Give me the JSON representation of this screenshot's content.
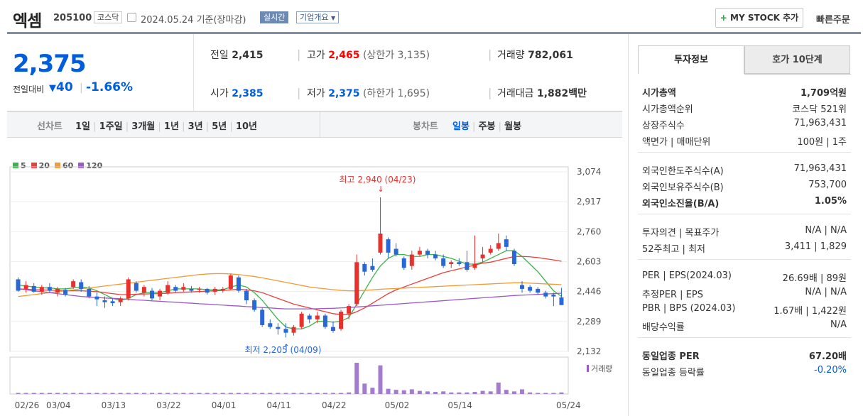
{
  "header": {
    "name": "엑셈",
    "code": "205100",
    "market_tag": "코스닥",
    "date_text": "2024.05.24 기준(장마감)",
    "realtime_btn": "실시간",
    "company_btn": "기업개요",
    "mystock_btn": "MY STOCK 추가",
    "quick_order": "빠른주문"
  },
  "price": {
    "current": "2,375",
    "change_label": "전일대비",
    "change": "40",
    "change_pct": "-1.66%"
  },
  "quote": {
    "prev_label": "전일",
    "prev": "2,415",
    "high_label": "고가",
    "high": "2,465",
    "upper_limit": "(상한가 3,135)",
    "volume_label": "거래량",
    "volume": "782,061",
    "open_label": "시가",
    "open": "2,385",
    "low_label": "저가",
    "low": "2,375",
    "lower_limit": "(하한가 1,695)",
    "amount_label": "거래대금",
    "amount": "1,882",
    "amount_unit": "백만"
  },
  "periods": {
    "line_label": "선차트",
    "items": [
      "1일",
      "1주일",
      "3개월",
      "1년",
      "3년",
      "5년",
      "10년"
    ],
    "candle_label": "봉차트",
    "candles": [
      "일봉",
      "주봉",
      "월봉"
    ],
    "selected_candle": "일봉"
  },
  "legend": [
    {
      "name": "5",
      "color": "#3cb34a"
    },
    {
      "name": "20",
      "color": "#e8403c"
    },
    {
      "name": "60",
      "color": "#f39a34"
    },
    {
      "name": "120",
      "color": "#9b59c8"
    }
  ],
  "chart_data": {
    "type": "candlestick",
    "y_ticks": [
      "3,074",
      "2,917",
      "2,760",
      "2,603",
      "2,446",
      "2,289",
      "2,132"
    ],
    "ylim": [
      2132,
      3074
    ],
    "x_ticks": [
      "02/26",
      "03/04",
      "03/13",
      "03/22",
      "04/01",
      "04/11",
      "04/22",
      "05/02",
      "05/14",
      "05/24"
    ],
    "max_annotation": "최고 2,940 (04/23)",
    "min_annotation": "최저 2,205 (04/09)",
    "volume_label": "거래량",
    "candles": [
      [
        2510,
        2450,
        2520,
        2445
      ],
      [
        2460,
        2480,
        2500,
        2440
      ],
      [
        2475,
        2445,
        2490,
        2440
      ],
      [
        2445,
        2470,
        2480,
        2430
      ],
      [
        2470,
        2450,
        2490,
        2440
      ],
      [
        2440,
        2460,
        2470,
        2420
      ],
      [
        2455,
        2430,
        2465,
        2420
      ],
      [
        2470,
        2500,
        2510,
        2460
      ],
      [
        2495,
        2460,
        2510,
        2445
      ],
      [
        2460,
        2420,
        2475,
        2410
      ],
      [
        2420,
        2405,
        2440,
        2370
      ],
      [
        2400,
        2390,
        2420,
        2360
      ],
      [
        2395,
        2385,
        2410,
        2370
      ],
      [
        2390,
        2410,
        2420,
        2370
      ],
      [
        2410,
        2510,
        2520,
        2400
      ],
      [
        2490,
        2450,
        2500,
        2440
      ],
      [
        2440,
        2470,
        2480,
        2420
      ],
      [
        2450,
        2410,
        2465,
        2400
      ],
      [
        2420,
        2450,
        2460,
        2400
      ],
      [
        2440,
        2480,
        2500,
        2430
      ],
      [
        2470,
        2450,
        2480,
        2440
      ],
      [
        2455,
        2470,
        2490,
        2445
      ],
      [
        2460,
        2450,
        2475,
        2440
      ],
      [
        2455,
        2460,
        2470,
        2440
      ],
      [
        2460,
        2440,
        2465,
        2430
      ],
      [
        2445,
        2460,
        2470,
        2430
      ],
      [
        2450,
        2460,
        2470,
        2440
      ],
      [
        2460,
        2530,
        2540,
        2455
      ],
      [
        2520,
        2450,
        2530,
        2440
      ],
      [
        2450,
        2400,
        2460,
        2380
      ],
      [
        2400,
        2350,
        2410,
        2340
      ],
      [
        2350,
        2270,
        2360,
        2260
      ],
      [
        2280,
        2260,
        2300,
        2250
      ],
      [
        2260,
        2250,
        2280,
        2220
      ],
      [
        2250,
        2230,
        2280,
        2205
      ],
      [
        2230,
        2260,
        2270,
        2215
      ],
      [
        2260,
        2330,
        2340,
        2250
      ],
      [
        2320,
        2300,
        2330,
        2280
      ],
      [
        2300,
        2320,
        2340,
        2280
      ],
      [
        2320,
        2260,
        2330,
        2250
      ],
      [
        2260,
        2240,
        2290,
        2230
      ],
      [
        2250,
        2340,
        2350,
        2240
      ],
      [
        2330,
        2370,
        2380,
        2300
      ],
      [
        2380,
        2600,
        2640,
        2370
      ],
      [
        2590,
        2550,
        2600,
        2530
      ],
      [
        2580,
        2560,
        2620,
        2550
      ],
      [
        2650,
        2750,
        2940,
        2640
      ],
      [
        2720,
        2650,
        2730,
        2620
      ],
      [
        2670,
        2640,
        2700,
        2630
      ],
      [
        2620,
        2570,
        2630,
        2560
      ],
      [
        2580,
        2640,
        2660,
        2560
      ],
      [
        2640,
        2660,
        2680,
        2630
      ],
      [
        2660,
        2640,
        2670,
        2620
      ],
      [
        2640,
        2620,
        2660,
        2610
      ],
      [
        2620,
        2580,
        2640,
        2570
      ],
      [
        2590,
        2600,
        2610,
        2570
      ],
      [
        2600,
        2590,
        2620,
        2580
      ],
      [
        2600,
        2560,
        2660,
        2550
      ],
      [
        2570,
        2590,
        2740,
        2560
      ],
      [
        2620,
        2640,
        2680,
        2600
      ],
      [
        2650,
        2670,
        2690,
        2640
      ],
      [
        2670,
        2700,
        2750,
        2660
      ],
      [
        2720,
        2680,
        2740,
        2660
      ],
      [
        2660,
        2590,
        2670,
        2580
      ],
      [
        2480,
        2460,
        2500,
        2440
      ],
      [
        2470,
        2450,
        2480,
        2440
      ],
      [
        2460,
        2440,
        2470,
        2430
      ],
      [
        2440,
        2420,
        2450,
        2410
      ],
      [
        2430,
        2420,
        2440,
        2370
      ],
      [
        2415,
        2375,
        2465,
        2375
      ]
    ],
    "ma": {
      "5": [
        2480,
        2475,
        2470,
        2465,
        2465,
        2460,
        2460,
        2465,
        2470,
        2465,
        2450,
        2430,
        2410,
        2400,
        2410,
        2430,
        2440,
        2440,
        2440,
        2450,
        2460,
        2460,
        2460,
        2460,
        2455,
        2455,
        2455,
        2470,
        2480,
        2470,
        2440,
        2400,
        2350,
        2300,
        2260,
        2250,
        2250,
        2265,
        2290,
        2290,
        2285,
        2290,
        2310,
        2380,
        2450,
        2520,
        2580,
        2620,
        2640,
        2640,
        2630,
        2630,
        2640,
        2640,
        2630,
        2620,
        2605,
        2590,
        2590,
        2600,
        2620,
        2640,
        2660,
        2660,
        2630,
        2590,
        2550,
        2500,
        2450,
        2420
      ],
      "20": [
        2460,
        2458,
        2456,
        2455,
        2453,
        2452,
        2450,
        2450,
        2450,
        2448,
        2445,
        2440,
        2435,
        2430,
        2430,
        2432,
        2433,
        2434,
        2435,
        2437,
        2440,
        2442,
        2444,
        2446,
        2448,
        2450,
        2452,
        2455,
        2458,
        2455,
        2450,
        2440,
        2425,
        2410,
        2395,
        2380,
        2370,
        2360,
        2350,
        2340,
        2330,
        2325,
        2325,
        2340,
        2360,
        2385,
        2410,
        2435,
        2455,
        2470,
        2485,
        2500,
        2515,
        2530,
        2545,
        2555,
        2565,
        2575,
        2585,
        2595,
        2600,
        2610,
        2620,
        2630,
        2630,
        2628,
        2624,
        2618,
        2612,
        2605
      ],
      "60": [
        2420,
        2425,
        2430,
        2435,
        2440,
        2445,
        2450,
        2455,
        2460,
        2465,
        2470,
        2475,
        2480,
        2485,
        2490,
        2495,
        2500,
        2505,
        2510,
        2515,
        2520,
        2525,
        2530,
        2535,
        2538,
        2540,
        2540,
        2538,
        2535,
        2530,
        2525,
        2518,
        2510,
        2502,
        2494,
        2486,
        2478,
        2470,
        2465,
        2460,
        2456,
        2452,
        2450,
        2450,
        2452,
        2455,
        2458,
        2460,
        2462,
        2464,
        2466,
        2468,
        2470,
        2472,
        2474,
        2476,
        2478,
        2480,
        2482,
        2484,
        2486,
        2488,
        2490,
        2492,
        2492,
        2490,
        2488,
        2486,
        2484,
        2482
      ],
      "120": [
        2460,
        2455,
        2450,
        2445,
        2440,
        2435,
        2430,
        2425,
        2420,
        2417,
        2415,
        2412,
        2410,
        2408,
        2405,
        2402,
        2400,
        2397,
        2395,
        2392,
        2390,
        2387,
        2385,
        2382,
        2380,
        2377,
        2375,
        2372,
        2370,
        2367,
        2365,
        2362,
        2360,
        2357,
        2355,
        2355,
        2355,
        2355,
        2356,
        2357,
        2358,
        2360,
        2362,
        2365,
        2368,
        2371,
        2374,
        2377,
        2380,
        2383,
        2386,
        2389,
        2392,
        2395,
        2398,
        2401,
        2404,
        2407,
        2410,
        2413,
        2416,
        2419,
        2422,
        2425,
        2427,
        2429,
        2431,
        2433,
        2435,
        2437
      ]
    },
    "volumes": [
      2,
      1,
      1,
      1,
      1,
      1,
      1,
      1,
      1,
      1,
      1,
      1,
      1,
      1,
      2,
      1,
      1,
      1,
      1,
      1,
      1,
      1,
      1,
      1,
      1,
      1,
      1,
      2,
      1,
      1,
      1,
      1,
      1,
      1,
      1,
      1,
      1,
      1,
      1,
      1,
      1,
      1,
      3,
      60,
      20,
      12,
      55,
      10,
      8,
      7,
      9,
      6,
      5,
      4,
      5,
      3,
      3,
      3,
      4,
      6,
      5,
      22,
      8,
      5,
      9,
      3,
      2,
      2,
      2,
      3
    ],
    "up_color": "#e8302d",
    "down_color": "#2867d6"
  },
  "side": {
    "tab_info": "투자정보",
    "tab_hoga": "호가 10단계",
    "rows1": [
      {
        "k": "시가총액",
        "v": "1,709억원",
        "bold": true
      },
      {
        "k": "시가총액순위",
        "v": "코스닥 521위"
      },
      {
        "k": "상장주식수",
        "v": "71,963,431"
      },
      {
        "k": "액면가 | 매매단위",
        "v": "100원 | 1주"
      }
    ],
    "rows2": [
      {
        "k": "외국인한도주식수(A)",
        "v": "71,963,431"
      },
      {
        "k": "외국인보유주식수(B)",
        "v": "753,700"
      },
      {
        "k": "외국인소진율(B/A)",
        "v": "1.05%",
        "bold": true
      }
    ],
    "rows3": [
      {
        "k": "투자의견 | 목표주가",
        "v": "N/A | N/A"
      },
      {
        "k": "52주최고 | 최저",
        "v": "3,411 | 1,829"
      }
    ],
    "rows4": [
      {
        "k": "PER | EPS(2024.03)",
        "v": "26.69배 | 89원"
      },
      {
        "k": "추정PER | EPS",
        "v": "N/A | N/A"
      },
      {
        "k": "PBR | BPS (2024.03)",
        "v": "1.67배 | 1,422원"
      },
      {
        "k": "배당수익률",
        "v": "N/A"
      }
    ],
    "rows5": [
      {
        "k": "동일업종 PER",
        "v": "67.20배",
        "bold": true
      },
      {
        "k": "동일업종 등락률",
        "v": "-0.20%",
        "blue": true
      }
    ]
  }
}
